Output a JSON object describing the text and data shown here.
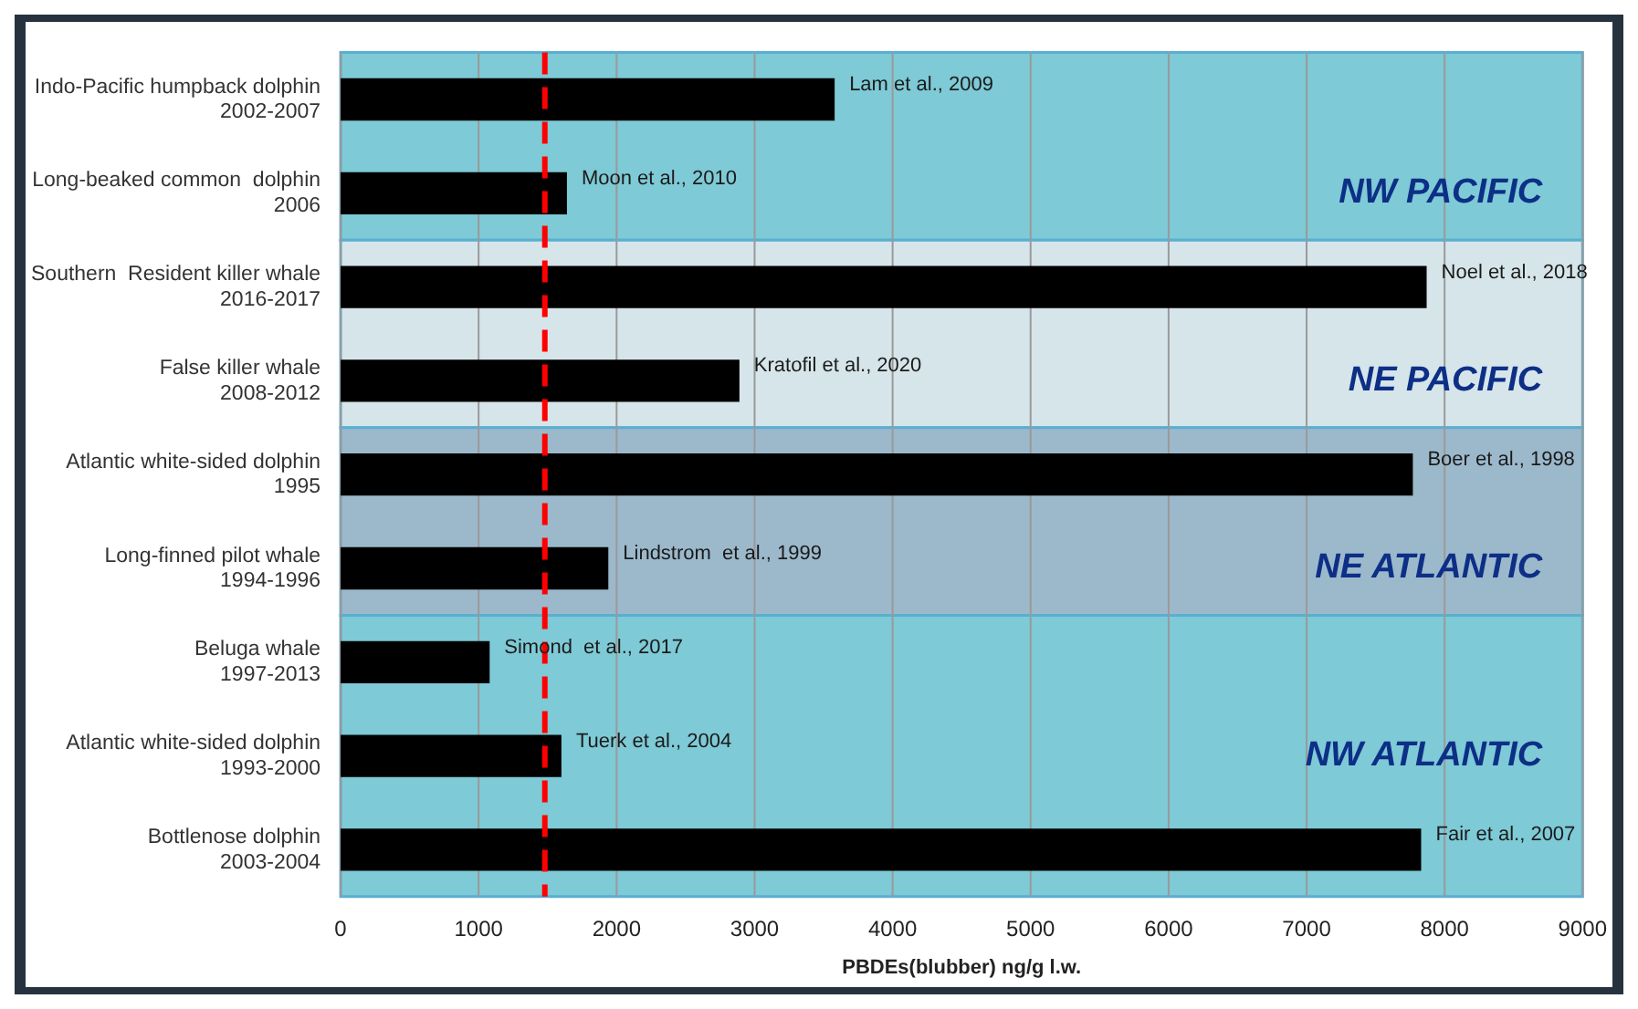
{
  "chart_data": {
    "type": "bar",
    "orientation": "horizontal",
    "categories": [
      "Indo-Pacific humpback dolphin\n2002-2007",
      "Long-beaked common  dolphin\n2006",
      "Southern  Resident killer whale\n2016-2017",
      "False killer whale\n2008-2012",
      "Atlantic white-sided dolphin\n1995",
      "Long-finned pilot whale\n1994-1996",
      "Beluga whale\n1997-2013",
      "Atlantic white-sided dolphin\n1993-2000",
      "Bottlenose dolphin\n2003-2004"
    ],
    "values": [
      3580,
      1640,
      7870,
      2890,
      7770,
      1940,
      1080,
      1600,
      7830
    ],
    "color": "#000000",
    "xlabel": "PBDEs(blubber) ng/g l.w.",
    "xlim": [
      0,
      9000
    ],
    "xticks": [
      0,
      1000,
      2000,
      3000,
      4000,
      5000,
      6000,
      7000,
      8000,
      9000
    ],
    "grid": "x",
    "legend": false,
    "ref_lines": [
      {
        "axis": "x",
        "value": 1480,
        "color": "#ff0000",
        "line_style": "dashed"
      }
    ],
    "bands": [
      {
        "axis": "y",
        "from": "Indo-Pacific humpback dolphin\n2002-2007",
        "to": "Long-beaked common  dolphin\n2006",
        "label": "NW PACIFIC",
        "color": "#7ecad6"
      },
      {
        "axis": "y",
        "from": "Southern  Resident killer whale\n2016-2017",
        "to": "False killer whale\n2008-2012",
        "label": "NE PACIFIC",
        "color": "#d6e5ea"
      },
      {
        "axis": "y",
        "from": "Atlantic white-sided dolphin\n1995",
        "to": "Long-finned pilot whale\n1994-1996",
        "label": "NE ATLANTIC",
        "color": "#9cb9cc"
      },
      {
        "axis": "y",
        "from": "Beluga whale\n1997-2013",
        "to": "Bottlenose dolphin\n2003-2004",
        "label": "NW ATLANTIC",
        "color": "#7ecad6"
      }
    ],
    "annotations": [
      {
        "text": "Lam et al., 2009",
        "x": 3580,
        "y": "Indo-Pacific humpback dolphin\n2002-2007"
      },
      {
        "text": "Moon et al., 2010",
        "x": 1640,
        "y": "Long-beaked common  dolphin\n2006"
      },
      {
        "text": "Noel et al., 2018",
        "x": 7870,
        "y": "Southern  Resident killer whale\n2016-2017"
      },
      {
        "text": "Kratofil et al., 2020",
        "x": 2890,
        "y": "False killer whale\n2008-2012"
      },
      {
        "text": "Boer et al., 1998",
        "x": 7770,
        "y": "Atlantic white-sided dolphin\n1995"
      },
      {
        "text": "Lindstrom  et al., 1999",
        "x": 1940,
        "y": "Long-finned pilot whale\n1994-1996"
      },
      {
        "text": "Simond  et al., 2017",
        "x": 1080,
        "y": "Beluga whale\n1997-2013"
      },
      {
        "text": "Tuerk et al., 2004",
        "x": 1600,
        "y": "Atlantic white-sided dolphin\n1993-2000"
      },
      {
        "text": "Fair et al., 2007",
        "x": 7830,
        "y": "Bottlenose dolphin\n2003-2004"
      }
    ]
  }
}
